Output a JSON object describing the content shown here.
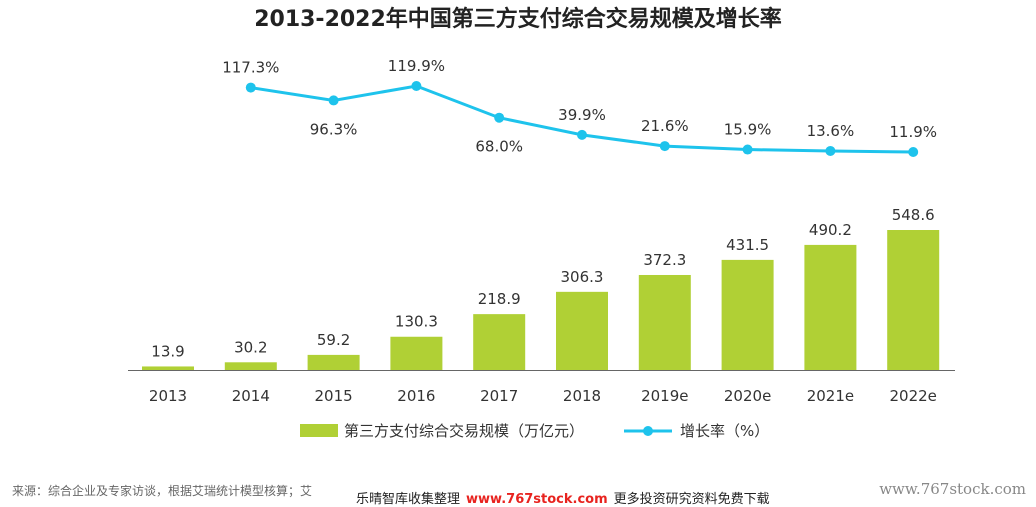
{
  "colors": {
    "bar": "#b0d035",
    "line": "#1ec3ec",
    "text": "#333333",
    "axis": "#666666",
    "banner_site": "#e8231f"
  },
  "chart_data": {
    "type": "bar",
    "title": "2013-2022年中国第三方支付综合交易规模及增长率",
    "categories": [
      "2013",
      "2014",
      "2015",
      "2016",
      "2017",
      "2018",
      "2019e",
      "2020e",
      "2021e",
      "2022e"
    ],
    "series": [
      {
        "name": "第三方支付综合交易规模（万亿元）",
        "type": "bar",
        "values": [
          13.9,
          30.2,
          59.2,
          130.3,
          218.9,
          306.3,
          372.3,
          431.5,
          490.2,
          548.6
        ],
        "labels": [
          "13.9",
          "30.2",
          "59.2",
          "130.3",
          "218.9",
          "306.3",
          "372.3",
          "431.5",
          "490.2",
          "548.6"
        ]
      },
      {
        "name": "增长率（%）",
        "type": "line",
        "values": [
          null,
          117.3,
          96.3,
          119.9,
          68.0,
          39.9,
          21.6,
          15.9,
          13.6,
          11.9
        ],
        "labels": [
          "",
          "117.3%",
          "96.3%",
          "119.9%",
          "68.0%",
          "39.9%",
          "21.6%",
          "15.9%",
          "13.6%",
          "11.9%"
        ]
      }
    ],
    "legend_position": "bottom",
    "grid": false
  },
  "footer": {
    "source": "来源：综合企业及专家访谈，根据艾瑞统计模型核算；艾",
    "banner_left": "乐晴智库收集整理",
    "banner_site": "www.767stock.com",
    "banner_right": "更多投资研究资料免费下载",
    "watermark": "www.767stock.com"
  }
}
